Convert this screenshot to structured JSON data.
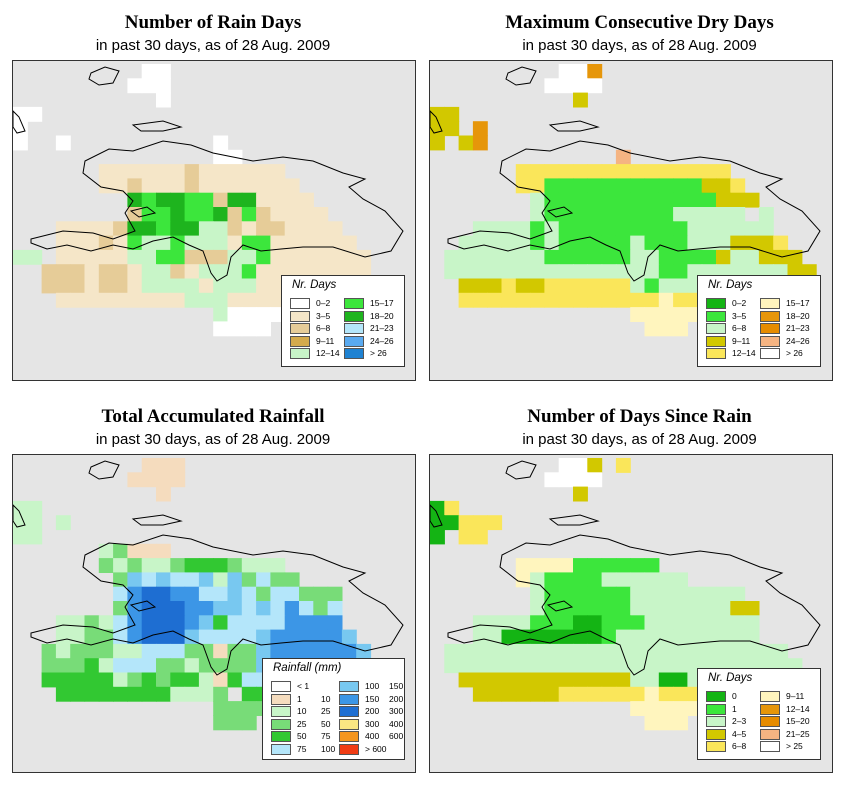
{
  "panels": [
    {
      "id": "rain_days",
      "title": "Number of Rain Days",
      "subtitle": "in past 30 days, as of  28 Aug. 2009",
      "legend_title": "Nr. Days",
      "legend": [
        {
          "label": "0–2",
          "color": "#ffffff"
        },
        {
          "label": "3–5",
          "color": "#f5e6c8"
        },
        {
          "label": "6–8",
          "color": "#e6cc98"
        },
        {
          "label": "9–11",
          "color": "#d4aa4c"
        },
        {
          "label": "12–14",
          "color": "#c8f5c8"
        },
        {
          "label": "15–17",
          "color": "#3ce63c"
        },
        {
          "label": "18–20",
          "color": "#1eb41e"
        },
        {
          "label": "21–23",
          "color": "#b4e6fa"
        },
        {
          "label": "24–26",
          "color": "#5aaaf0"
        },
        {
          "label": "> 26",
          "color": "#1e82d2"
        }
      ],
      "grid_rows": [
        ".........aa.................",
        "........aaa.................",
        "..........a.................",
        "aa..........................",
        "a...........................",
        "a..a..........a.............",
        "..............aa............",
        "......bbbbbbcbbbbbb.........",
        "......bbcbbbcbbbbbbb........",
        "........gfggffcggbbbb.......",
        "........cffgffgcfcbbbb......",
        "...bbbbcggfggeecbccbbbb.....",
        "...bbbcbfeefeeebffbbbbbb....",
        "ee.bbbbbeeffccceefbbbbbbb...",
        "..cccbccbeecbeeefbbbbbbbb...",
        "..cccbccbeeeebeeebbbbbbbbb..",
        "...bbbbbbbbbeeebbbbbbbbbb...",
        "..............eaaaa.........",
        "..............aaaa.........."
      ]
    },
    {
      "id": "max_dry",
      "title": "Maximum Consecutive Dry Days",
      "subtitle": "in past 30 days, as of  28 Aug. 2009",
      "legend_title": "Nr. Days",
      "legend": [
        {
          "label": "0–2",
          "color": "#14b414"
        },
        {
          "label": "3–5",
          "color": "#3ce63c"
        },
        {
          "label": "6–8",
          "color": "#c8f5c8"
        },
        {
          "label": "9–11",
          "color": "#d2c800"
        },
        {
          "label": "12–14",
          "color": "#fae65a"
        },
        {
          "label": "15–17",
          "color": "#fff5be"
        },
        {
          "label": "18–20",
          "color": "#e6960a"
        },
        {
          "label": "21–23",
          "color": "#e68c00"
        },
        {
          "label": "24–26",
          "color": "#f5b482"
        },
        {
          "label": "> 26",
          "color": "#ffffff"
        }
      ],
      "grid_rows": [
        ".........jjg................",
        "........jjjj................",
        "..........d.................",
        "dd..........................",
        "dd.g........................",
        "d.dg........................",
        ".............i..............",
        "......eeeeeeeeeeeeeee.......",
        "......eebbbbbbbbbbbdde.......",
        ".......cbbbbbbbbbbbbddd.....",
        ".......cbbbbbbbbbccccc.c....",
        "...ccccbcbbbbbbbbbcccccc....",
        "..cccccbcbbbbbcbbbcccddde...",
        ".cccccccbbbbbbccbbbbdccddd..",
        ".cccccccccccccccbbcccccccdd.",
        "..dddeddeeeeeecbcccccccddd..",
        "..eeeeeeeeeeeeeefeee........",
        "..............fffff.........",
        "...............fff.........."
      ]
    },
    {
      "id": "total_rain",
      "title": "Total Accumulated Rainfall",
      "subtitle": "in past 30 days, as of  28 Aug. 2009",
      "legend_title": "Rainfall (mm)",
      "legend": [
        {
          "label": "< 1",
          "label2": "",
          "color": "#ffffff"
        },
        {
          "label": "1",
          "label2": "10",
          "color": "#f5dcbe"
        },
        {
          "label": "10",
          "label2": "25",
          "color": "#c8f5c8"
        },
        {
          "label": "25",
          "label2": "50",
          "color": "#78dc78"
        },
        {
          "label": "50",
          "label2": "75",
          "color": "#32c832"
        },
        {
          "label": "75",
          "label2": "100",
          "color": "#b4e6fa"
        },
        {
          "label": "100",
          "label2": "150",
          "color": "#78c8f0"
        },
        {
          "label": "150",
          "label2": "200",
          "color": "#3c96e6"
        },
        {
          "label": "200",
          "label2": "300",
          "color": "#1e6ed2"
        },
        {
          "label": "300",
          "label2": "400",
          "color": "#fae682"
        },
        {
          "label": "400",
          "label2": "600",
          "color": "#f5961e"
        },
        {
          "label": "> 600",
          "label2": "",
          "color": "#f03c14"
        }
      ],
      "grid_rows": [
        ".........bbb................",
        "........bbbb................",
        "..........b.................",
        "cc..........................",
        "cc.c........................",
        "cc..........................",
        "......cdbbb.................",
        "......dcdccdeeedccc.........",
        ".......dgfgffgcgdfdd........",
        ".......fhiihhffgfdffddd.....",
        ".......dhiiihhggfgfhfdf.....",
        "...ccdcfhiiihgeffffhhhh.....",
        "...ccddfhiiigffffghhhhhg....",
        "..dcdddccfffddbddghhhhhhg...",
        "..dddecfffddcddddghhhhhhg...",
        "..eeeeecdedeecbeffggfgggff..",
        "...eeeeeeeecccd.eeeddcdd....",
        "..............ddddd.........",
        "..............ddd..........."
      ]
    },
    {
      "id": "days_since",
      "title": "Number of Days Since Rain",
      "subtitle": "in past 30 days, as of  28 Aug. 2009",
      "legend_title": "Nr. Days",
      "legend": [
        {
          "label": "0",
          "color": "#14b414"
        },
        {
          "label": "1",
          "color": "#3ce63c"
        },
        {
          "label": "2–3",
          "color": "#c8f5c8"
        },
        {
          "label": "4–5",
          "color": "#d2c800"
        },
        {
          "label": "6–8",
          "color": "#fae65a"
        },
        {
          "label": "9–11",
          "color": "#fff5be"
        },
        {
          "label": "12–14",
          "color": "#e6960a"
        },
        {
          "label": "15–20",
          "color": "#e68c00"
        },
        {
          "label": "21–25",
          "color": "#f5b482"
        },
        {
          "label": "> 25",
          "color": "#ffffff"
        }
      ],
      "grid_rows": [
        ".........jjd.e..............",
        "........jjjj................",
        "..........d.................",
        "ae..........................",
        "aaeee.......................",
        "a.ee........................",
        "............................",
        "......ffffbbbbbb.............",
        "......fcbbbbcccccc...........",
        ".......cbbbbbbcccccccc......",
        ".......cbbbbbbcccccccdd.....",
        "...ccccbbbaabbbcccccccc.....",
        "...ccaaaaaaabcccccccccc.....",
        ".cccccccccccccccccccccccc...",
        ".ccccccccccccccccccccccccc..",
        "..ddddddddddddccaaccbchhgf..",
        "...ddddddeeeeeefeeeee.......",
        "..............fffff.........",
        "...............fff.........."
      ]
    }
  ]
}
